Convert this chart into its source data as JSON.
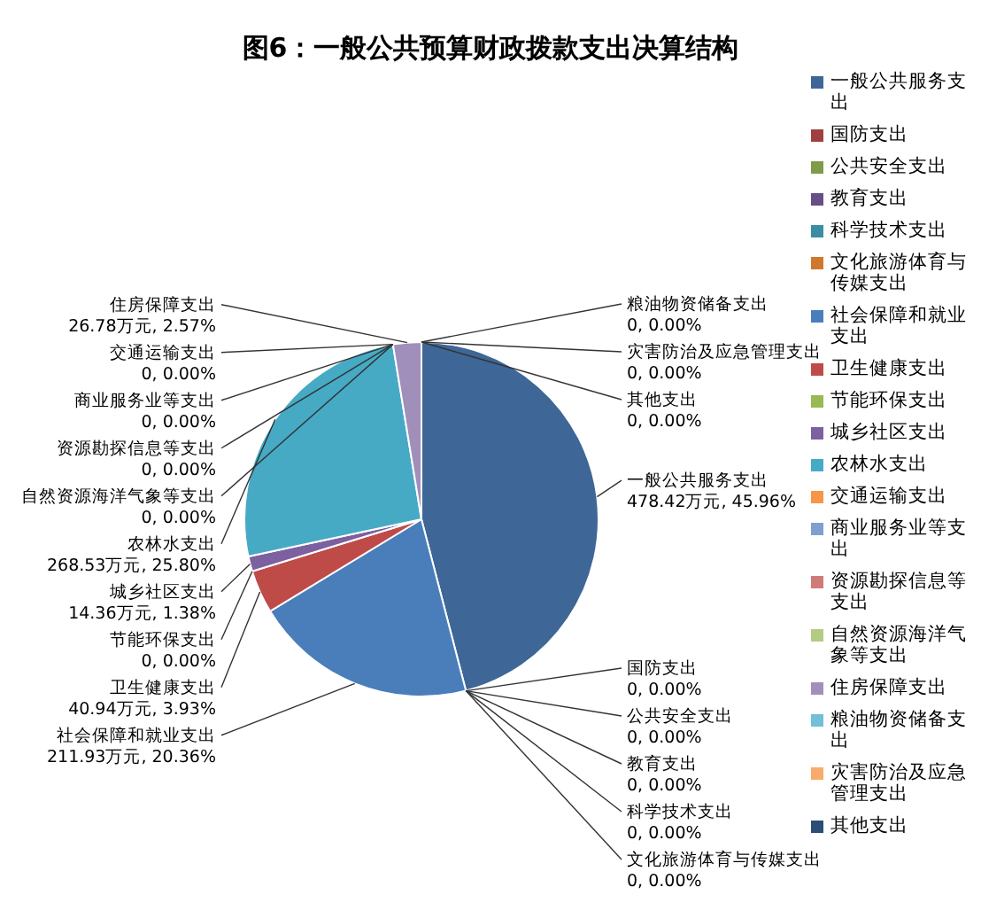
{
  "chart_data": {
    "type": "pie",
    "title": "图6：一般公共预算财政拨款支出决算结构",
    "categories": [
      "一般公共服务支出",
      "国防支出",
      "公共安全支出",
      "教育支出",
      "科学技术支出",
      "文化旅游体育与传媒支出",
      "社会保障和就业支出",
      "卫生健康支出",
      "节能环保支出",
      "城乡社区支出",
      "农林水支出",
      "交通运输支出",
      "商业服务业等支出",
      "资源勘探信息等支出",
      "自然资源海洋气象等支出",
      "住房保障支出",
      "粮油物资储备支出",
      "灾害防治及应急管理支出",
      "其他支出"
    ],
    "values": [
      478.42,
      0,
      0,
      0,
      0,
      0,
      211.93,
      40.94,
      0,
      14.36,
      268.53,
      0,
      0,
      0,
      0,
      26.78,
      0,
      0,
      0
    ],
    "value_labels": [
      "478.42万元, 45.96%",
      "0, 0.00%",
      "0, 0.00%",
      "0, 0.00%",
      "0, 0.00%",
      "0, 0.00%",
      "211.93万元, 20.36%",
      "40.94万元, 3.93%",
      "0, 0.00%",
      "14.36万元, 1.38%",
      "268.53万元, 25.80%",
      "0, 0.00%",
      "0, 0.00%",
      "0, 0.00%",
      "0, 0.00%",
      "26.78万元, 2.57%",
      "0, 0.00%",
      "0, 0.00%",
      "0, 0.00%"
    ],
    "colors": [
      "#3e6696",
      "#9e413e",
      "#7f9a48",
      "#664e86",
      "#3a8da3",
      "#d0782d",
      "#4a7ebb",
      "#be4b48",
      "#98b954",
      "#7d60a0",
      "#46aac5",
      "#f79646",
      "#7f9fcf",
      "#cf7b79",
      "#b4cb82",
      "#a08fbb",
      "#6fc0d8",
      "#f9ab6b",
      "#2c4d75"
    ],
    "legend": "right"
  }
}
